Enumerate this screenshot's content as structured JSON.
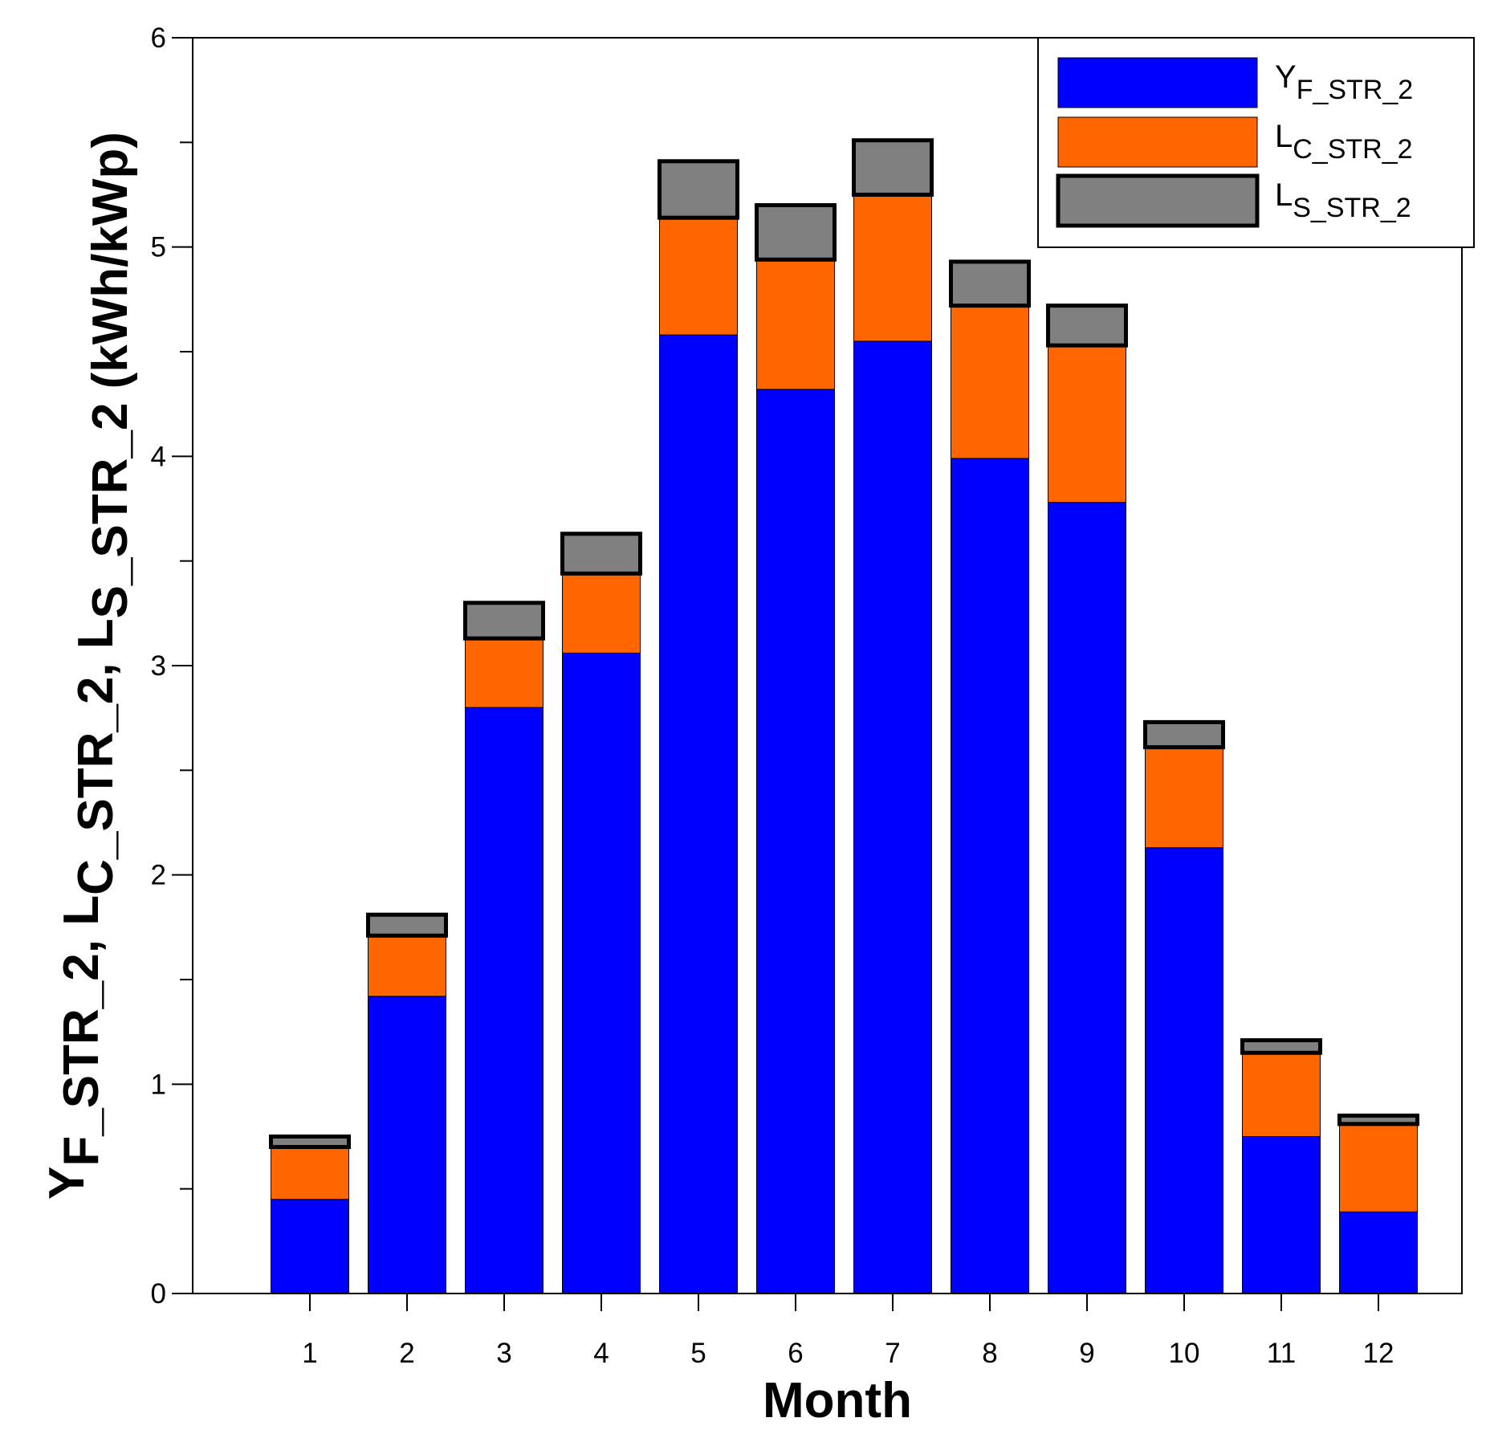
{
  "chart_data": {
    "type": "bar",
    "stacked": true,
    "title": "",
    "xlabel": "Month",
    "ylabel": {
      "parts": [
        {
          "main": "Y",
          "sub": "F_STR_2"
        },
        {
          "main": ", L",
          "sub": "C_STR_2"
        },
        {
          "main": ", L",
          "sub": "S_STR_2"
        }
      ],
      "unit": " (kWh/kWp)"
    },
    "ylim": [
      0,
      6
    ],
    "yticks": [
      "0",
      "1",
      "2",
      "3",
      "4",
      "5",
      "6"
    ],
    "categories": [
      "1",
      "2",
      "3",
      "4",
      "5",
      "6",
      "7",
      "8",
      "9",
      "10",
      "11",
      "12"
    ],
    "legend_position": "top-right",
    "series": [
      {
        "name": "YF_STR_2",
        "label_main": "Y",
        "label_sub": "F_STR_2",
        "color": "#0000ff",
        "values": [
          0.45,
          1.42,
          2.8,
          3.06,
          4.58,
          4.32,
          4.55,
          3.99,
          3.78,
          2.13,
          0.75,
          0.39
        ]
      },
      {
        "name": "LC_STR_2",
        "label_main": "L",
        "label_sub": "C_STR_2",
        "color": "#ff6600",
        "values": [
          0.25,
          0.29,
          0.33,
          0.38,
          0.56,
          0.62,
          0.7,
          0.73,
          0.75,
          0.48,
          0.4,
          0.42
        ]
      },
      {
        "name": "LS_STR_2",
        "label_main": "L",
        "label_sub": "S_STR_2",
        "color": "#808080",
        "values": [
          0.05,
          0.1,
          0.17,
          0.19,
          0.27,
          0.26,
          0.26,
          0.21,
          0.19,
          0.12,
          0.06,
          0.04
        ]
      }
    ]
  }
}
